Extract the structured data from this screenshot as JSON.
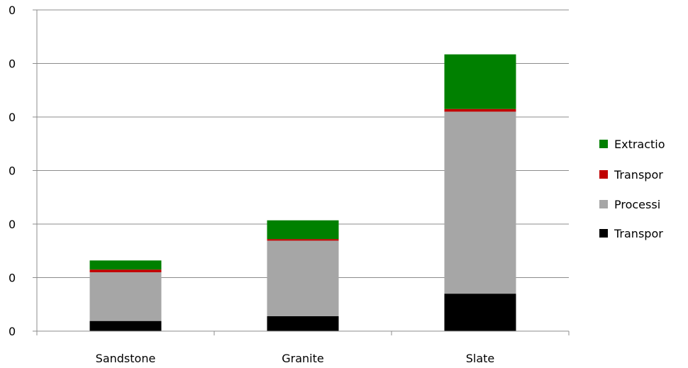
{
  "chart_data": {
    "type": "bar",
    "stacked": true,
    "categories": [
      "Sandstone",
      "Granite",
      "Slate"
    ],
    "y_tick_labels": [
      "0",
      "0",
      "0",
      "0",
      "0",
      "0",
      "0"
    ],
    "ylim": [
      0,
      6
    ],
    "grid": true,
    "legend_position": "right",
    "series": [
      {
        "name": "Transpor",
        "color": "#000000",
        "values": [
          0.19,
          0.28,
          0.7
        ]
      },
      {
        "name": "Processi",
        "color": "#a6a6a6",
        "values": [
          0.91,
          1.41,
          3.4
        ]
      },
      {
        "name": "Transpor",
        "color": "#c00000",
        "values": [
          0.05,
          0.03,
          0.05
        ]
      },
      {
        "name": "Extractio",
        "color": "#008000",
        "values": [
          0.17,
          0.35,
          1.02
        ]
      }
    ],
    "legend_order": [
      3,
      2,
      1,
      0
    ]
  }
}
